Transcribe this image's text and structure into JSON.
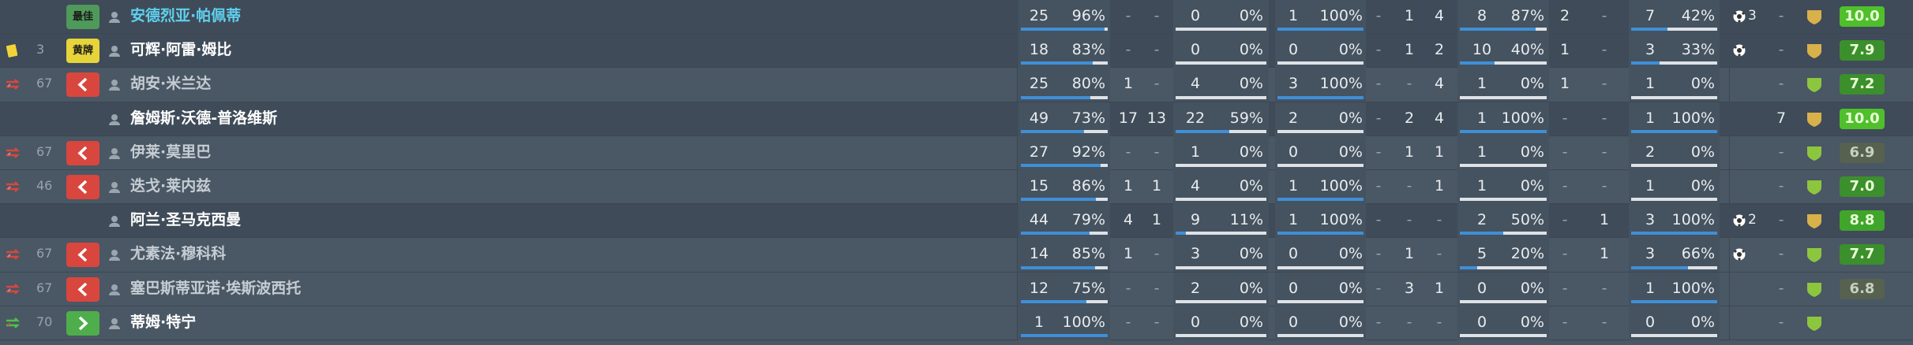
{
  "rows": [
    {
      "icon": "none",
      "badge": "最佳",
      "badge_color": "#4f9a5a",
      "name": "安德烈亚·帕佩蒂",
      "name_color": "#5fd0ee",
      "stats": [
        "25",
        "96%",
        "-",
        "-",
        "0",
        "0%",
        "1",
        "100%",
        "-",
        "1",
        "4",
        "8",
        "87%",
        "2",
        "-",
        "7",
        "42%"
      ],
      "ball": true,
      "ball_count": "3",
      "last": "-",
      "rating": "10.0"
    },
    {
      "icon": "yellow",
      "minute": "3",
      "badge": "黄牌",
      "badge_color": "#e6d43a",
      "name": "可辉·阿雷·姆比",
      "name_color": "#ffffff",
      "stats": [
        "18",
        "83%",
        "-",
        "-",
        "0",
        "0%",
        "0",
        "0%",
        "-",
        "1",
        "2",
        "10",
        "40%",
        "1",
        "-",
        "3",
        "33%"
      ],
      "ball": true,
      "last": "-",
      "rating": "7.9"
    },
    {
      "icon": "off",
      "minute": "67",
      "badge_color": "#d9463e",
      "chevron": "left",
      "name": "胡安·米兰达",
      "name_color": "#c5ccd3",
      "stats": [
        "25",
        "80%",
        "1",
        "-",
        "4",
        "0%",
        "3",
        "100%",
        "-",
        "-",
        "4",
        "1",
        "0%",
        "1",
        "-",
        "1",
        "0%"
      ],
      "ball": false,
      "last": "-",
      "rating": "7.2"
    },
    {
      "icon": "none",
      "name": "詹姆斯·沃德-普洛维斯",
      "name_color": "#ffffff",
      "stats": [
        "49",
        "73%",
        "17",
        "13",
        "22",
        "59%",
        "2",
        "0%",
        "-",
        "2",
        "4",
        "1",
        "100%",
        "-",
        "-",
        "1",
        "100%"
      ],
      "ball": false,
      "last": "7",
      "rating": "10.0"
    },
    {
      "icon": "off",
      "minute": "67",
      "badge_color": "#d9463e",
      "chevron": "left",
      "name": "伊莱·莫里巴",
      "name_color": "#c5ccd3",
      "stats": [
        "27",
        "92%",
        "-",
        "-",
        "1",
        "0%",
        "0",
        "0%",
        "-",
        "1",
        "1",
        "1",
        "0%",
        "-",
        "-",
        "2",
        "0%"
      ],
      "ball": false,
      "last": "-",
      "rating": "6.9"
    },
    {
      "icon": "off",
      "minute": "46",
      "badge_color": "#d9463e",
      "chevron": "left",
      "name": "迭戈·莱内兹",
      "name_color": "#c5ccd3",
      "stats": [
        "15",
        "86%",
        "1",
        "1",
        "4",
        "0%",
        "1",
        "100%",
        "-",
        "-",
        "1",
        "1",
        "0%",
        "-",
        "-",
        "1",
        "0%"
      ],
      "ball": false,
      "last": "-",
      "rating": "7.0"
    },
    {
      "icon": "none",
      "name": "阿兰·圣马克西曼",
      "name_color": "#ffffff",
      "stats": [
        "44",
        "79%",
        "4",
        "1",
        "9",
        "11%",
        "1",
        "100%",
        "-",
        "-",
        "-",
        "2",
        "50%",
        "-",
        "1",
        "3",
        "100%"
      ],
      "ball": true,
      "ball_count": "2",
      "last": "-",
      "rating": "8.8"
    },
    {
      "icon": "off",
      "minute": "67",
      "badge_color": "#d9463e",
      "chevron": "left",
      "name": "尤素法·穆科科",
      "name_color": "#c5ccd3",
      "stats": [
        "14",
        "85%",
        "1",
        "-",
        "3",
        "0%",
        "0",
        "0%",
        "-",
        "1",
        "-",
        "5",
        "20%",
        "-",
        "1",
        "3",
        "66%"
      ],
      "ball": true,
      "last": "-",
      "rating": "7.7"
    },
    {
      "icon": "off",
      "minute": "67",
      "badge_color": "#d9463e",
      "chevron": "left",
      "name": "塞巴斯蒂亚诺·埃斯波西托",
      "name_color": "#c5ccd3",
      "stats": [
        "12",
        "75%",
        "-",
        "-",
        "2",
        "0%",
        "0",
        "0%",
        "-",
        "3",
        "1",
        "0",
        "0%",
        "-",
        "-",
        "1",
        "100%"
      ],
      "ball": false,
      "last": "-",
      "rating": "6.8"
    },
    {
      "icon": "on",
      "minute": "70",
      "badge_color": "#4fae4c",
      "chevron": "right",
      "name": "蒂姆·特宁",
      "name_color": "#ffffff",
      "stats": [
        "1",
        "100%",
        "-",
        "-",
        "0",
        "0%",
        "0",
        "0%",
        "-",
        "-",
        "-",
        "0",
        "0%",
        "-",
        "-",
        "0",
        "0%"
      ],
      "ball": false,
      "last": "-"
    }
  ]
}
